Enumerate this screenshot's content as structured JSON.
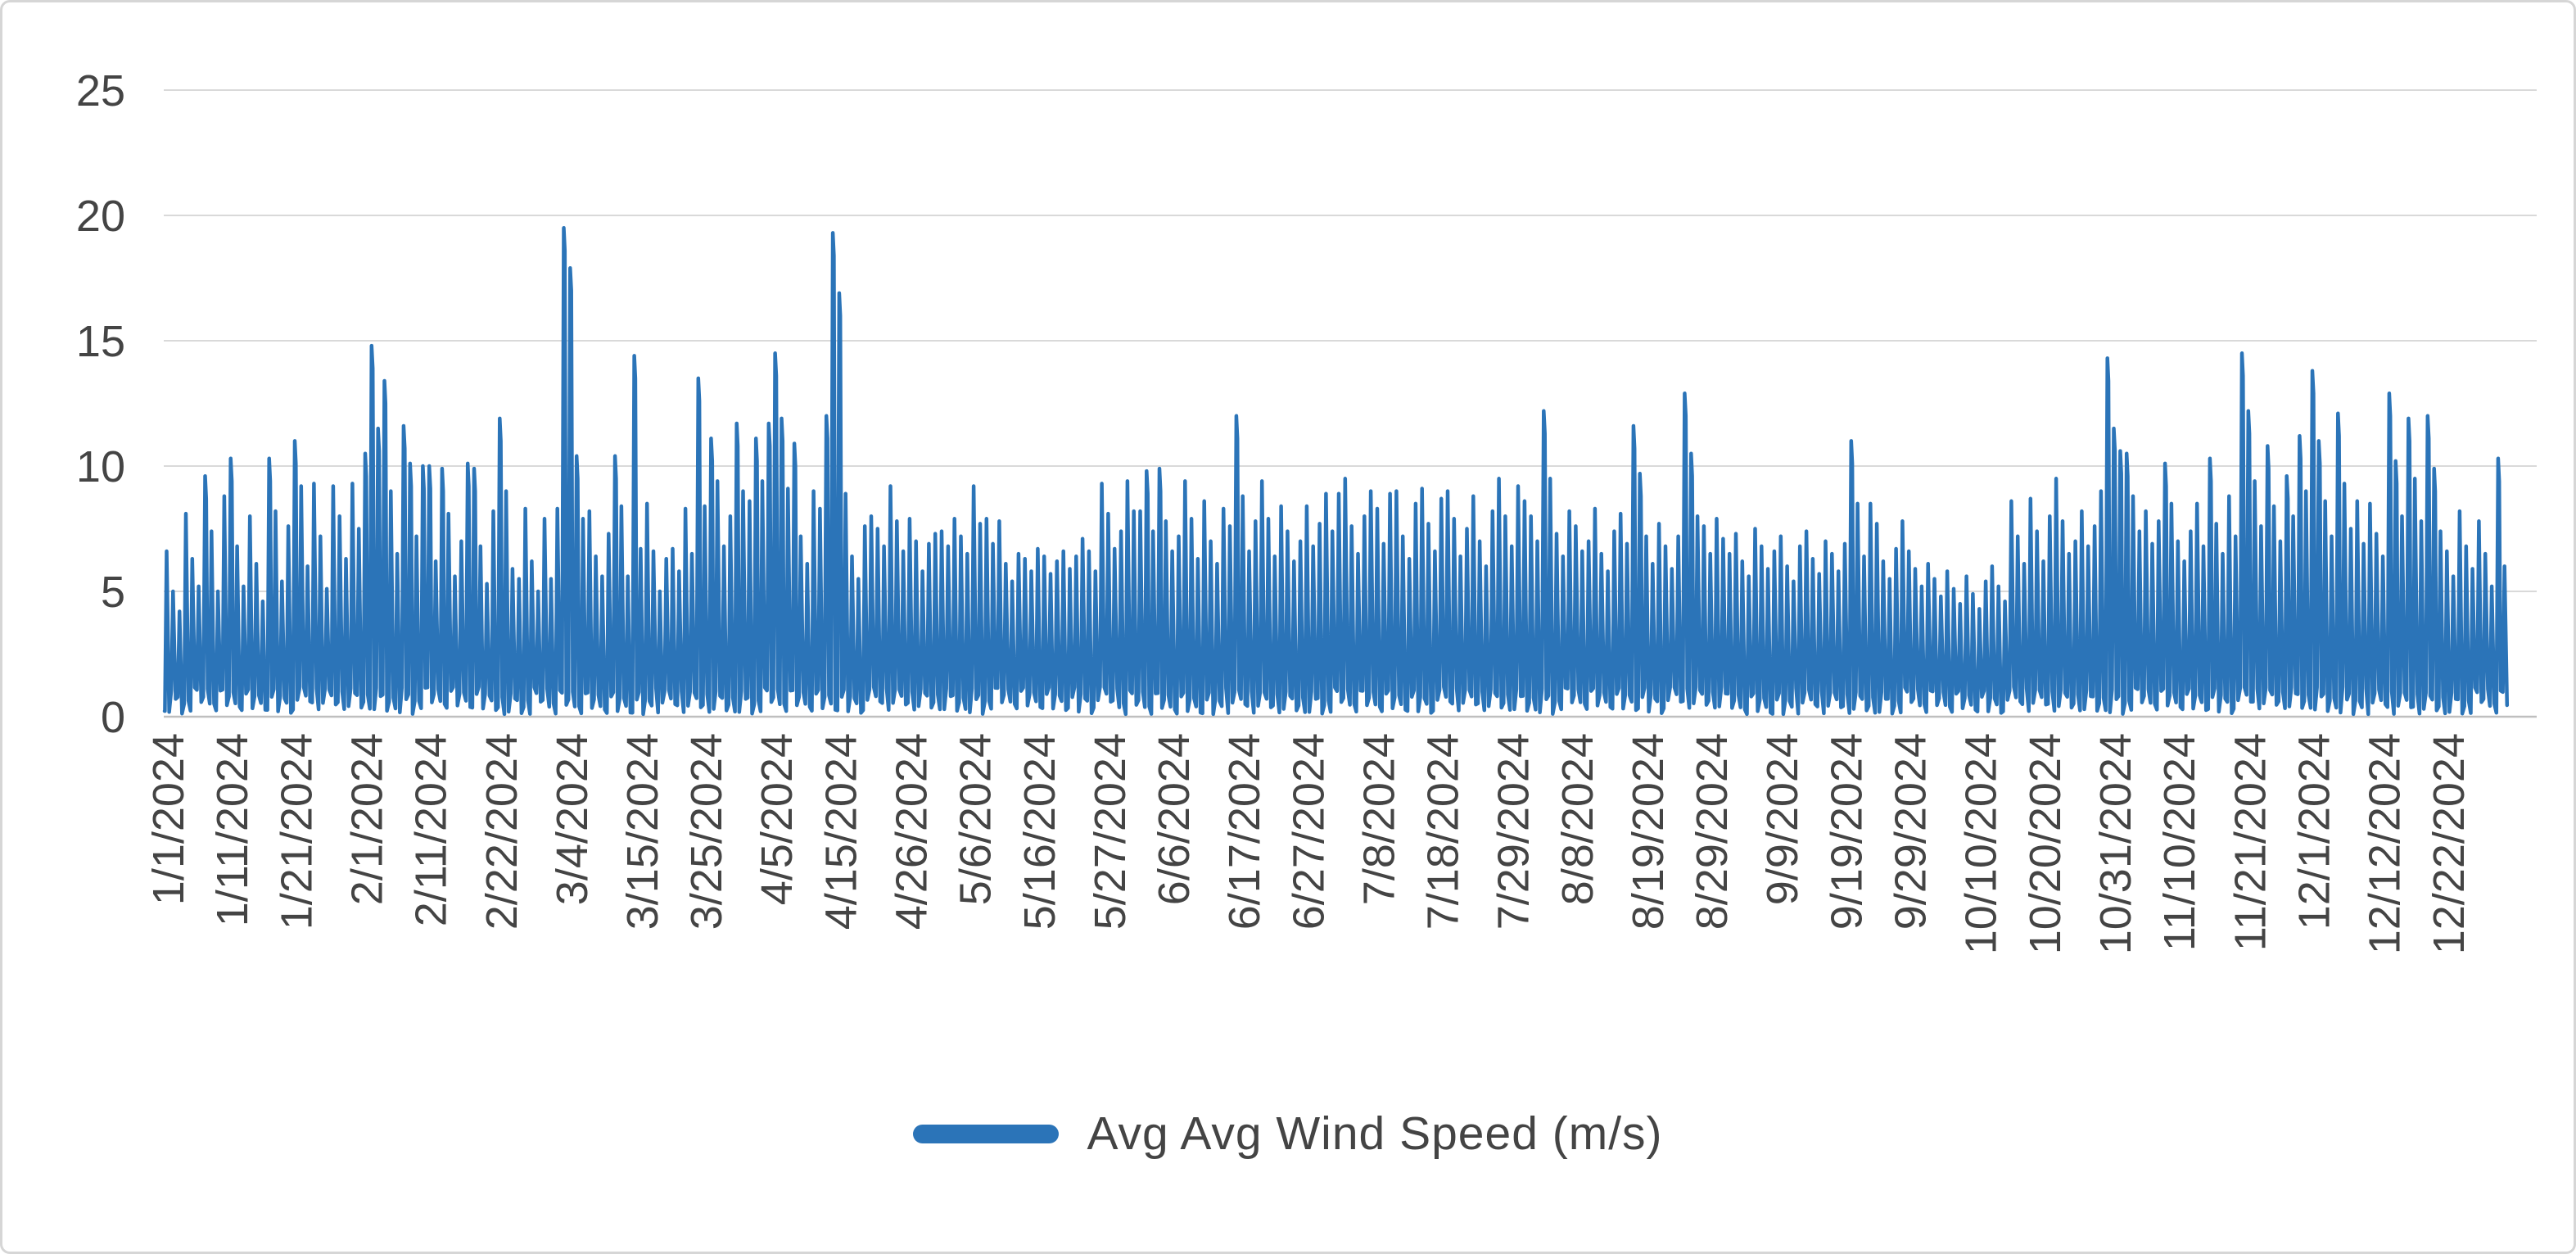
{
  "page": {
    "background_color": "#ffffff",
    "border_color": "#d6d6d6"
  },
  "chart_data": {
    "type": "line",
    "title": "",
    "xlabel": "",
    "ylabel": "",
    "grid": true,
    "colors": {
      "series": "#2b74b8",
      "gridline": "#d9d9d9",
      "axis_line": "#bfbfbf",
      "tick_text": "#444444",
      "legend_text": "#444444"
    },
    "y_axis": {
      "min": 0,
      "max": 25,
      "ticks": [
        0,
        5,
        10,
        15,
        20,
        25
      ]
    },
    "x_axis": {
      "label_rotation_deg": -90,
      "days_total": 366,
      "tick_labels": [
        "1/1/2024",
        "1/11/2024",
        "1/21/2024",
        "2/1/2024",
        "2/11/2024",
        "2/22/2024",
        "3/4/2024",
        "3/15/2024",
        "3/25/2024",
        "4/5/2024",
        "4/15/2024",
        "4/26/2024",
        "5/6/2024",
        "5/16/2024",
        "5/27/2024",
        "6/6/2024",
        "6/17/2024",
        "6/27/2024",
        "7/8/2024",
        "7/18/2024",
        "7/29/2024",
        "8/8/2024",
        "8/19/2024",
        "8/29/2024",
        "9/9/2024",
        "9/19/2024",
        "9/29/2024",
        "10/10/2024",
        "10/20/2024",
        "10/31/2024",
        "11/10/2024",
        "11/21/2024",
        "12/1/2024",
        "12/12/2024",
        "12/22/2024"
      ],
      "tick_day_index": [
        0,
        10,
        20,
        31,
        41,
        52,
        63,
        74,
        84,
        95,
        105,
        116,
        126,
        136,
        147,
        157,
        168,
        178,
        189,
        199,
        210,
        220,
        231,
        241,
        252,
        262,
        272,
        283,
        293,
        304,
        314,
        325,
        335,
        346,
        356
      ]
    },
    "legend": {
      "position": "bottom",
      "label": "Avg Avg Wind Speed（m/s）"
    },
    "series": [
      {
        "name": "Avg Avg Wind Speed（m/s）",
        "color": "#2b74b8",
        "sampling_note": "daily peak values estimated from pixels; intraday values oscillate down to near 0",
        "daily_min_range": [
          0.1,
          1.2
        ],
        "daily_max": [
          6.6,
          5.0,
          4.2,
          8.1,
          6.3,
          5.2,
          9.6,
          7.4,
          5.0,
          8.8,
          10.3,
          6.8,
          5.2,
          8.0,
          6.1,
          4.6,
          10.3,
          8.2,
          5.4,
          7.6,
          11.0,
          9.2,
          6.0,
          9.3,
          7.2,
          5.1,
          9.2,
          8.0,
          6.3,
          9.3,
          7.5,
          10.5,
          14.8,
          11.5,
          13.4,
          9.0,
          6.5,
          11.6,
          10.1,
          7.2,
          10.0,
          10.0,
          6.2,
          9.9,
          8.1,
          5.6,
          7.0,
          10.1,
          9.9,
          6.8,
          5.3,
          8.2,
          11.9,
          9.0,
          5.9,
          5.5,
          8.3,
          6.2,
          5.0,
          7.9,
          5.5,
          8.3,
          19.5,
          17.9,
          10.4,
          7.9,
          8.2,
          6.4,
          5.6,
          7.3,
          10.4,
          8.4,
          5.6,
          14.4,
          6.7,
          8.5,
          6.6,
          5.0,
          6.3,
          6.7,
          5.8,
          8.3,
          6.5,
          13.5,
          8.4,
          11.1,
          9.4,
          6.8,
          8.0,
          11.7,
          9.0,
          8.6,
          11.1,
          9.4,
          11.7,
          14.5,
          11.9,
          9.1,
          10.9,
          7.2,
          6.1,
          9.0,
          8.3,
          12.0,
          19.3,
          16.9,
          8.9,
          6.4,
          5.5,
          7.6,
          8.0,
          7.5,
          6.8,
          9.2,
          7.8,
          6.6,
          7.9,
          7.0,
          5.8,
          6.9,
          7.3,
          7.4,
          6.8,
          7.9,
          7.2,
          6.5,
          9.2,
          7.7,
          7.9,
          6.9,
          7.8,
          6.1,
          5.4,
          6.5,
          6.3,
          5.8,
          6.7,
          6.4,
          5.7,
          6.2,
          6.6,
          5.9,
          6.4,
          7.1,
          6.6,
          5.8,
          9.3,
          8.1,
          6.7,
          7.4,
          9.4,
          8.2,
          8.2,
          9.8,
          7.4,
          9.9,
          7.8,
          6.6,
          7.2,
          9.4,
          7.9,
          6.3,
          8.6,
          7.0,
          6.1,
          8.3,
          7.6,
          12.0,
          8.8,
          6.6,
          7.8,
          9.4,
          7.9,
          6.4,
          8.4,
          7.4,
          6.2,
          7.0,
          8.4,
          6.8,
          7.7,
          8.9,
          7.4,
          8.9,
          9.5,
          7.6,
          6.5,
          8.0,
          9.0,
          8.3,
          6.9,
          8.9,
          9.0,
          7.2,
          6.3,
          8.5,
          9.1,
          7.7,
          6.6,
          8.7,
          9.0,
          7.9,
          6.4,
          7.5,
          8.8,
          7.0,
          6.0,
          8.2,
          9.5,
          8.0,
          6.8,
          9.2,
          8.6,
          8.0,
          7.0,
          12.2,
          9.5,
          7.3,
          6.4,
          8.2,
          7.6,
          6.6,
          7.0,
          8.3,
          6.5,
          5.8,
          7.4,
          8.1,
          6.9,
          11.6,
          9.7,
          7.2,
          6.1,
          7.7,
          6.8,
          5.9,
          7.2,
          12.9,
          10.5,
          8.0,
          7.6,
          6.5,
          7.9,
          7.1,
          6.5,
          7.3,
          6.2,
          5.6,
          7.5,
          6.8,
          5.9,
          6.6,
          7.2,
          6.0,
          5.4,
          6.8,
          7.4,
          6.3,
          5.7,
          7.0,
          6.5,
          5.8,
          6.9,
          11.0,
          8.5,
          6.4,
          8.5,
          7.7,
          6.2,
          5.5,
          6.7,
          7.8,
          6.6,
          5.9,
          5.2,
          6.1,
          5.5,
          4.8,
          5.8,
          5.1,
          4.5,
          5.6,
          4.9,
          4.3,
          5.4,
          6.0,
          5.2,
          4.6,
          8.6,
          7.2,
          6.1,
          8.7,
          7.4,
          6.2,
          8.0,
          9.5,
          7.8,
          6.5,
          7.0,
          8.2,
          6.8,
          7.6,
          9.0,
          14.3,
          11.5,
          10.6,
          10.5,
          8.8,
          7.4,
          8.2,
          6.9,
          7.8,
          10.1,
          8.5,
          7.0,
          6.2,
          7.4,
          8.5,
          6.8,
          10.3,
          7.7,
          6.5,
          8.8,
          7.2,
          14.5,
          12.2,
          9.4,
          7.6,
          10.8,
          8.4,
          7.0,
          9.6,
          8.0,
          11.2,
          9.0,
          13.8,
          11.0,
          8.6,
          7.2,
          12.1,
          9.3,
          7.5,
          8.6,
          6.9,
          8.5,
          7.3,
          6.4,
          12.9,
          10.2,
          8.0,
          11.9,
          9.5,
          7.8,
          12.0,
          9.9,
          7.4,
          6.6,
          5.6,
          8.2,
          6.8,
          5.9,
          7.8,
          6.5,
          5.2,
          10.3,
          6.0
        ]
      }
    ]
  }
}
